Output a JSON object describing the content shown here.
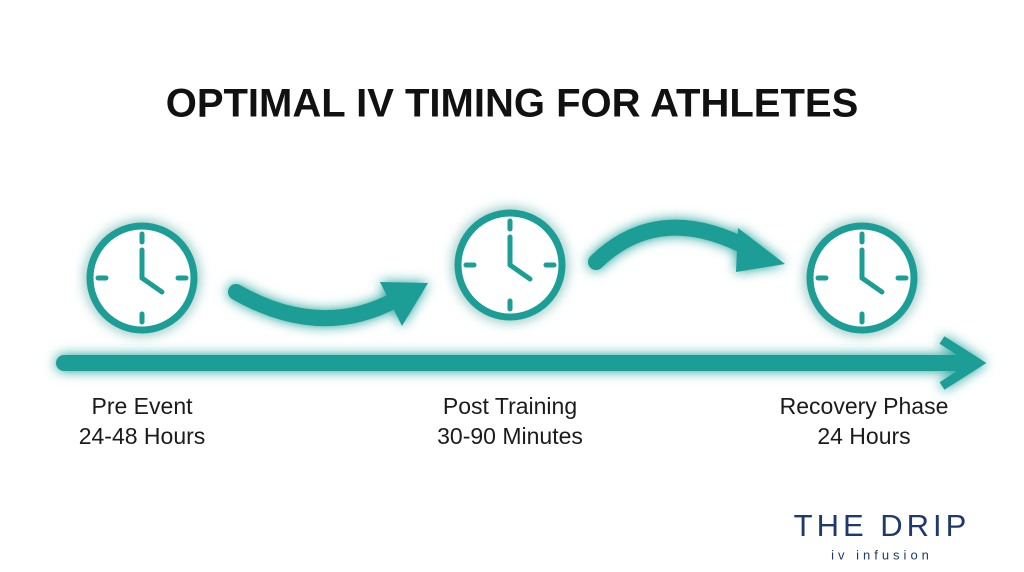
{
  "title": "OPTIMAL IV TIMING FOR ATHLETES",
  "stages": [
    {
      "label": "Pre Event",
      "timing": "24-48 Hours"
    },
    {
      "label": "Post Training",
      "timing": "30-90 Minutes"
    },
    {
      "label": "Recovery Phase",
      "timing": "24 Hours"
    }
  ],
  "logo": {
    "name": "THE DRIP",
    "tagline": "iv infusion"
  }
}
